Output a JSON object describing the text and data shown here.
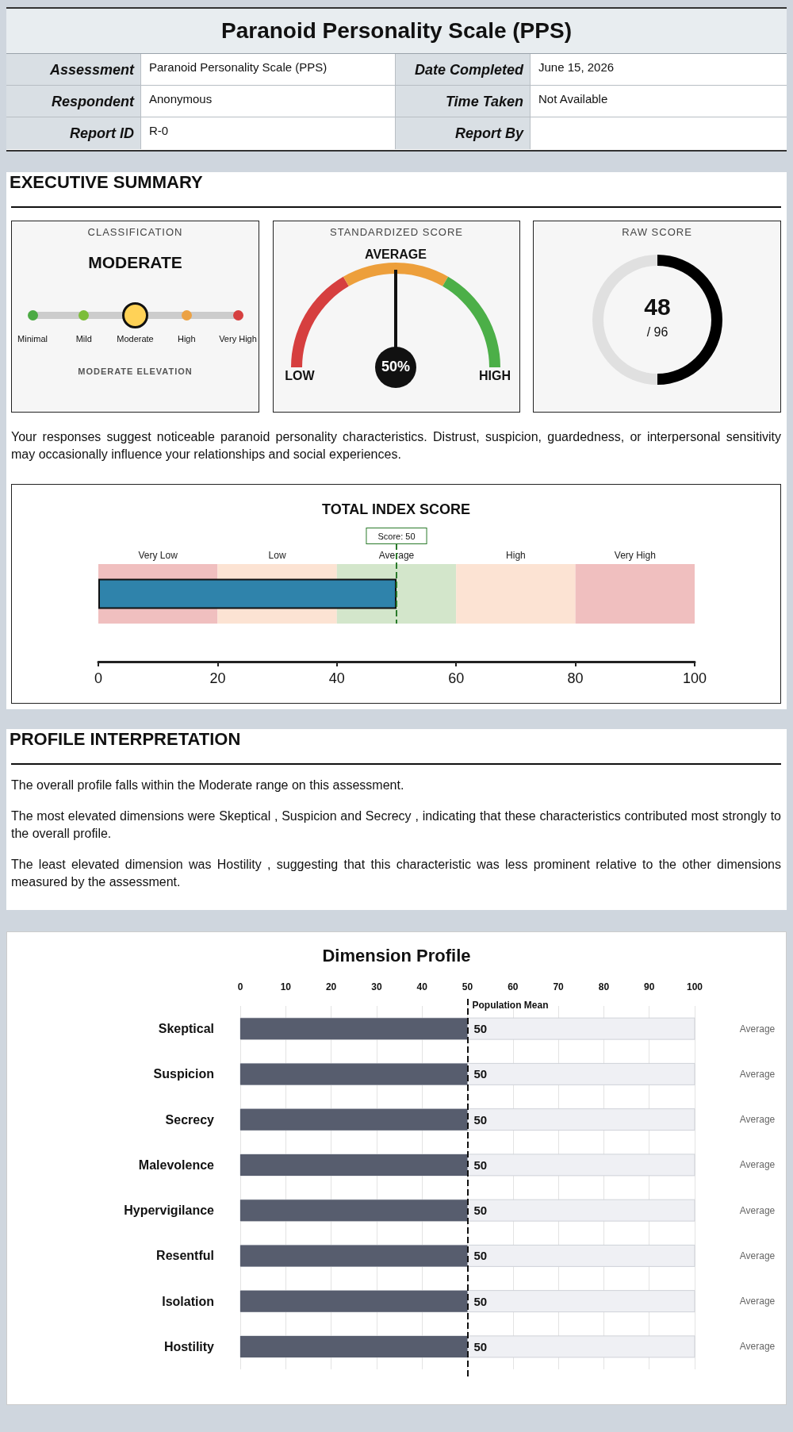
{
  "chart_data": [
    {
      "type": "other",
      "title": "Paranoid Personality Scale (PPS)",
      "annotations": [
        "Assessment",
        "Paranoid Personality Scale (PPS)",
        "Date Completed",
        "June 15, 2026",
        "Respondent",
        "Anonymous",
        "Time Taken",
        "Not Available",
        "Report ID",
        "R-0",
        "Report By"
      ]
    },
    {
      "type": "other",
      "title": "EXECUTIVE SUMMARY",
      "subtitle": "CLASSIFICATION",
      "categories": [
        "Minimal",
        "Mild",
        "Moderate",
        "High",
        "Very High"
      ],
      "colors": [
        "#4caa44",
        "#7cbd3a",
        "#ffd257",
        "#eca244",
        "#d64040"
      ],
      "needle": "MODERATE",
      "annotations": [
        "MODERATE ELEVATION",
        "Your responses suggest noticeable paranoid personality characteristics. Distrust, suspicion, guardedness, or interpersonal sensitivity may occasionally influence your relationships and social experiences."
      ]
    },
    {
      "type": "donut",
      "title": "STANDARDIZED SCORE",
      "categories": [
        "LOW",
        "AVERAGE",
        "HIGH"
      ],
      "values": [
        33.3,
        33.4,
        33.3
      ],
      "colors": [
        "#d63f3f",
        "#ed9f3b",
        "#4caf48"
      ],
      "needle": "AVERAGE",
      "annotations": [
        "50%"
      ]
    },
    {
      "type": "donut",
      "title": "RAW SCORE",
      "categories": [
        null,
        null
      ],
      "values": [
        50,
        50
      ],
      "colors": [
        "#000000",
        "#e0e0e0"
      ],
      "annotations": [
        "48",
        "/ 96"
      ]
    },
    {
      "type": "bar",
      "orientation": "horizontal",
      "title": "TOTAL INDEX SCORE",
      "categories": [
        null
      ],
      "values": [
        50
      ],
      "color": "#2f83ab",
      "xlim": [
        0,
        100
      ],
      "xticks": [
        0,
        20,
        40,
        60,
        80,
        100
      ],
      "tick_labels": "x",
      "bands": [
        {
          "axis": "x",
          "from": 0,
          "to": 20,
          "label": "Very Low",
          "color": "#f0bfbf"
        },
        {
          "axis": "x",
          "from": 20,
          "to": 40,
          "label": "Low",
          "color": "#fce3d3"
        },
        {
          "axis": "x",
          "from": 40,
          "to": 60,
          "label": "Average",
          "color": "#d3e6cb"
        },
        {
          "axis": "x",
          "from": 60,
          "to": 80,
          "label": "High",
          "color": "#fce3d3"
        },
        {
          "axis": "x",
          "from": 80,
          "to": 100,
          "label": "Very High",
          "color": "#f0bfbf"
        }
      ],
      "ref_lines": [
        {
          "axis": "x",
          "value": 50,
          "label": "Score: 50",
          "color": "#2a7a2a",
          "line_style": "dashed"
        }
      ]
    },
    {
      "type": "other",
      "title": "PROFILE INTERPRETATION",
      "annotations": [
        "The overall profile falls within the Moderate range on this assessment.",
        "The most elevated dimensions were Skeptical , Suspicion and Secrecy , indicating that these characteristics contributed most strongly to the overall profile.",
        "The least elevated dimension was Hostility , suggesting that this characteristic was less prominent relative to the other dimensions measured by the assessment."
      ]
    },
    {
      "type": "bar",
      "orientation": "horizontal",
      "title": "Dimension Profile",
      "categories": [
        "Skeptical",
        "Suspicion",
        "Secrecy",
        "Malevolence",
        "Hypervigilance",
        "Resentful",
        "Isolation",
        "Hostility"
      ],
      "values": [
        50,
        50,
        50,
        50,
        50,
        50,
        50,
        50
      ],
      "color": "#575d6e",
      "xlim": [
        0,
        100
      ],
      "xticks": [
        0,
        10,
        20,
        30,
        40,
        50,
        60,
        70,
        80,
        90,
        100
      ],
      "grid": "x",
      "data_labels": true,
      "ref_lines": [
        {
          "axis": "x",
          "value": 50,
          "label": "Population Mean",
          "color": "#111111",
          "line_style": "dashed"
        }
      ],
      "annotations": [
        "Average",
        "Average",
        "Average",
        "Average",
        "Average",
        "Average",
        "Average",
        "Average"
      ]
    }
  ]
}
